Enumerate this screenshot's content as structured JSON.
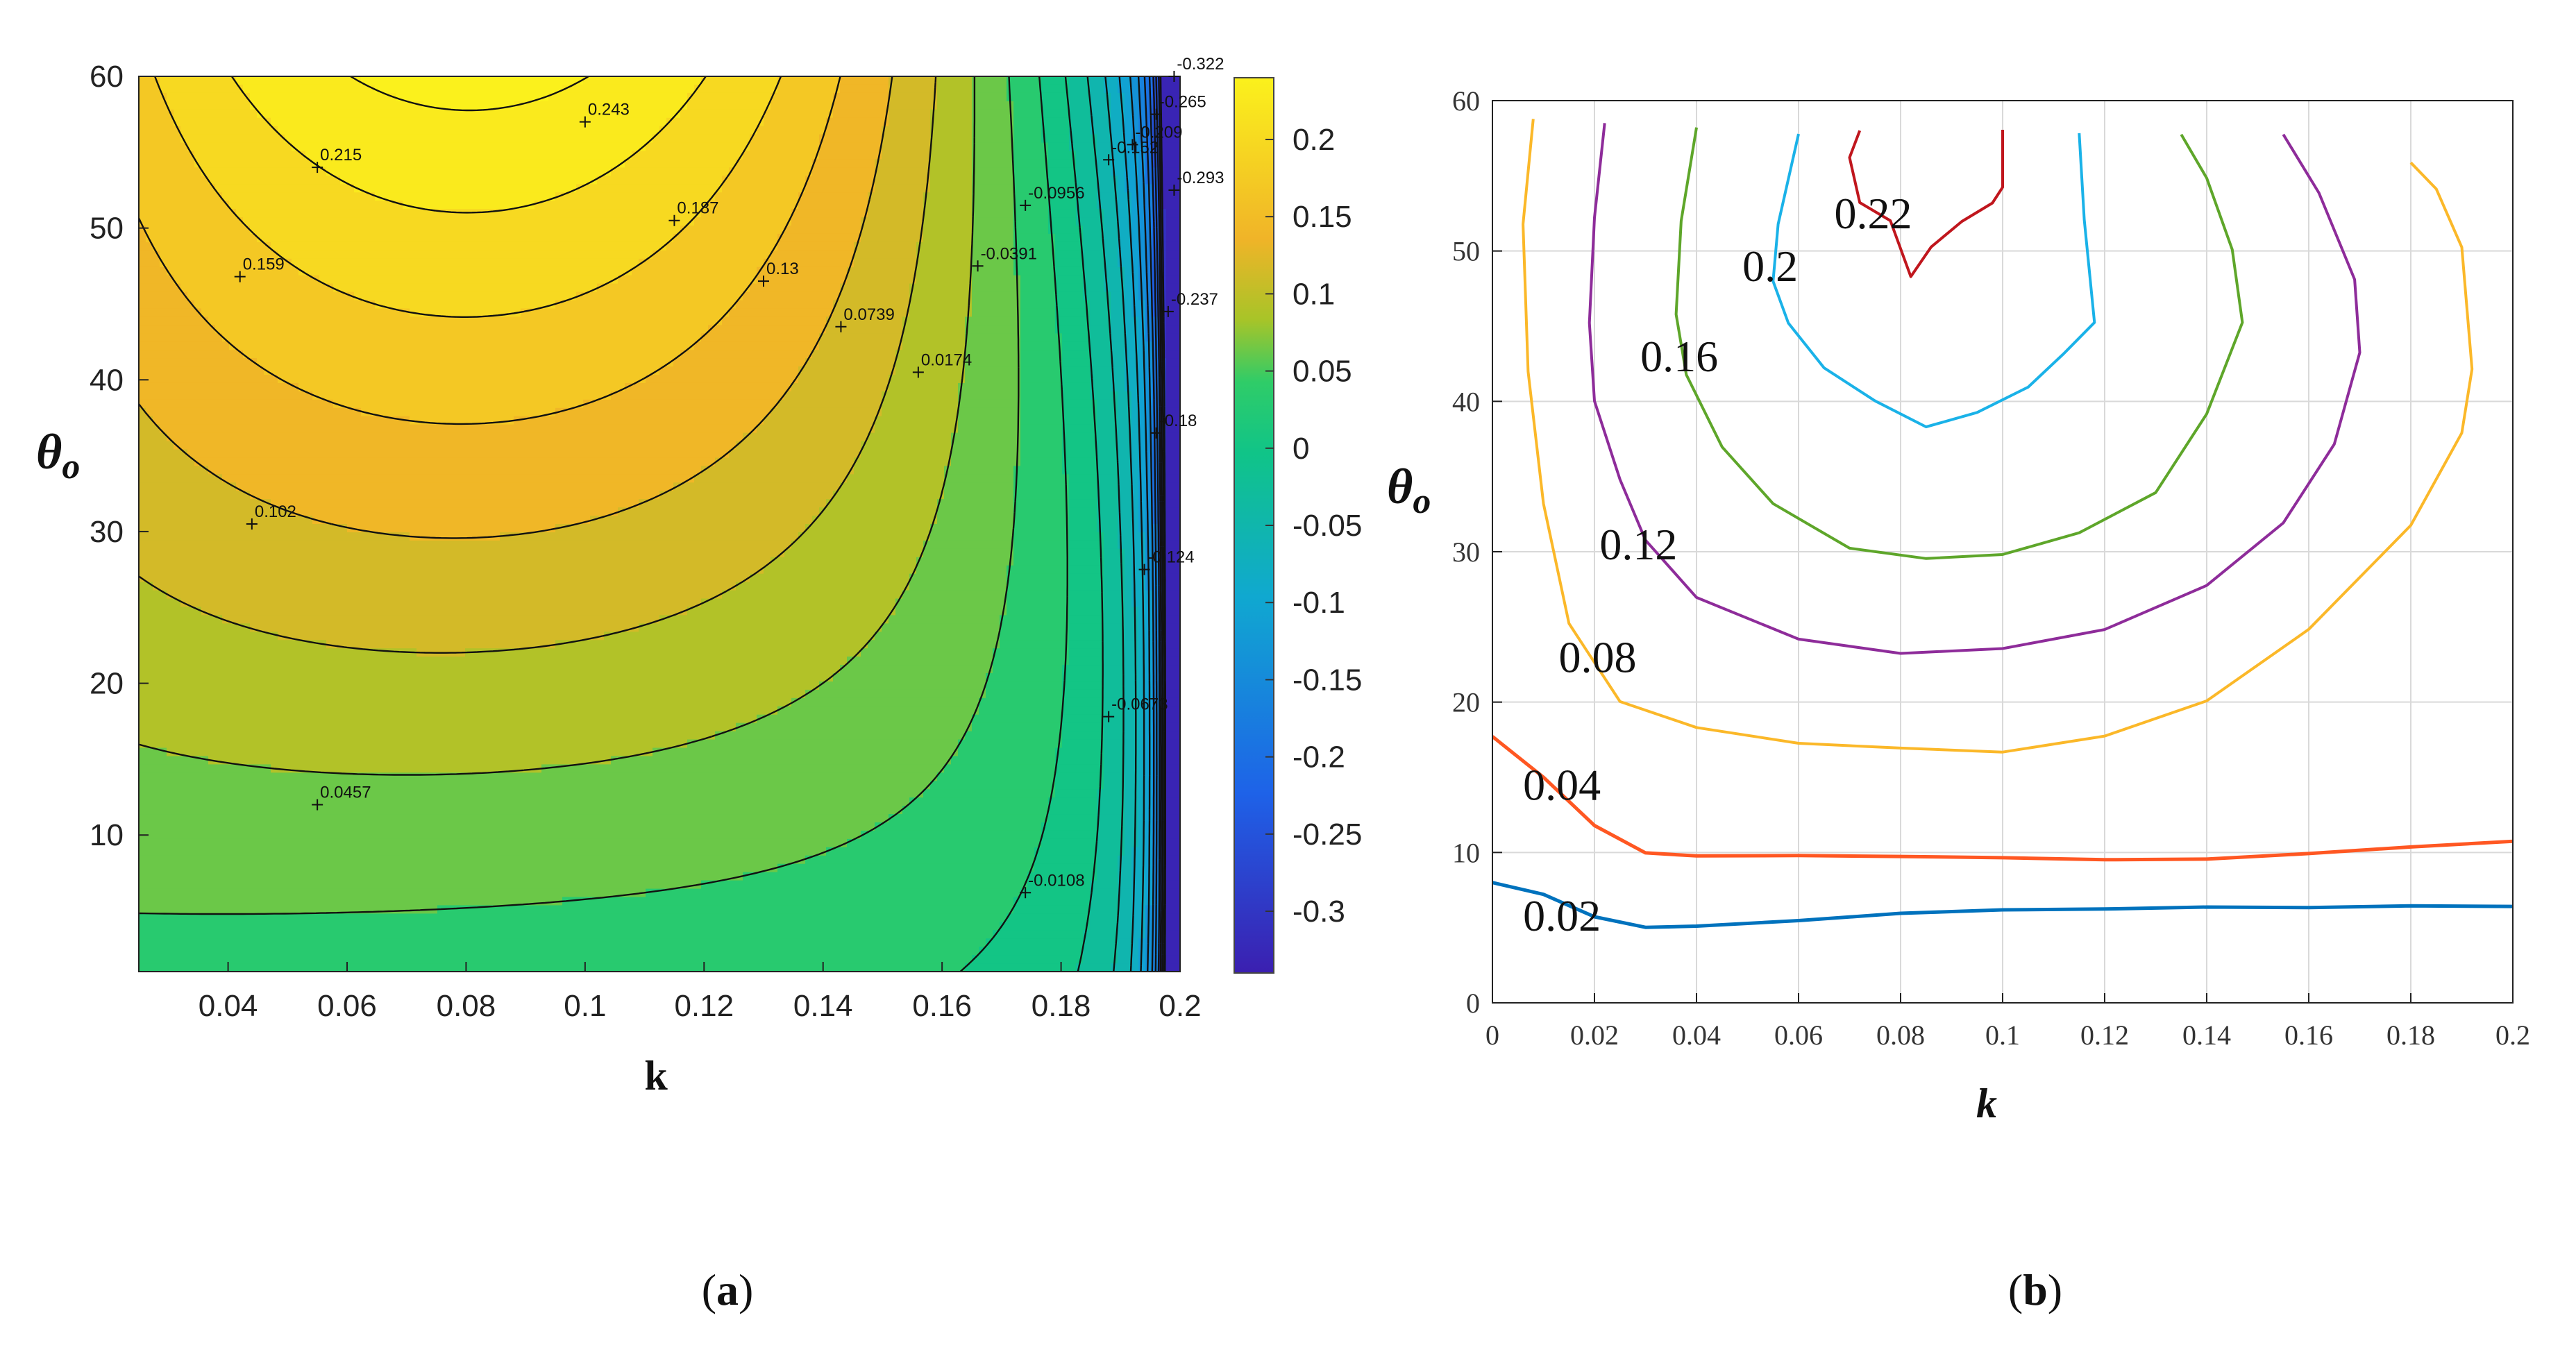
{
  "chart_data": [
    {
      "type": "contour",
      "panel": "(a)",
      "title": "",
      "xlabel": "k",
      "ylabel": "θo",
      "xlim": [
        0.025,
        0.2
      ],
      "ylim": [
        1,
        60
      ],
      "xticks": [
        "0.04",
        "0.06",
        "0.08",
        "0.1",
        "0.12",
        "0.14",
        "0.16",
        "0.18",
        "0.2"
      ],
      "yticks": [
        "10",
        "20",
        "30",
        "40",
        "50",
        "60"
      ],
      "colorbar": {
        "range": [
          -0.34,
          0.24
        ],
        "ticks": [
          "0.2",
          "0.15",
          "0.1",
          "0.05",
          "0",
          "-0.05",
          "-0.1",
          "-0.15",
          "-0.2",
          "-0.25",
          "-0.3"
        ]
      },
      "contour_labels": [
        {
          "text": "0.243",
          "k": 0.1,
          "theta": 57
        },
        {
          "text": "0.215",
          "k": 0.055,
          "theta": 54
        },
        {
          "text": "0.187",
          "k": 0.115,
          "theta": 50.5
        },
        {
          "text": "0.159",
          "k": 0.042,
          "theta": 46.8
        },
        {
          "text": "0.13",
          "k": 0.13,
          "theta": 46.5
        },
        {
          "text": "0.102",
          "k": 0.044,
          "theta": 30.5
        },
        {
          "text": "0.0739",
          "k": 0.143,
          "theta": 43.5
        },
        {
          "text": "0.0457",
          "k": 0.055,
          "theta": 12
        },
        {
          "text": "0.0174",
          "k": 0.156,
          "theta": 40.5
        },
        {
          "text": "-0.0108",
          "k": 0.174,
          "theta": 6.2
        },
        {
          "text": "-0.0391",
          "k": 0.166,
          "theta": 47.5
        },
        {
          "text": "-0.0673",
          "k": 0.188,
          "theta": 17.8
        },
        {
          "text": "-0.0956",
          "k": 0.174,
          "theta": 51.5
        },
        {
          "text": "-0.124",
          "k": 0.194,
          "theta": 27.5
        },
        {
          "text": "-0.152",
          "k": 0.188,
          "theta": 54.5
        },
        {
          "text": "-0.18",
          "k": 0.196,
          "theta": 36.5
        },
        {
          "text": "-0.209",
          "k": 0.192,
          "theta": 55.5
        },
        {
          "text": "-0.237",
          "k": 0.198,
          "theta": 44.5
        },
        {
          "text": "-0.265",
          "k": 0.196,
          "theta": 57.5
        },
        {
          "text": "-0.293",
          "k": 0.199,
          "theta": 52.5
        },
        {
          "text": "-0.322",
          "k": 0.199,
          "theta": 60
        }
      ]
    },
    {
      "type": "contour",
      "panel": "(b)",
      "title": "",
      "xlabel": "k",
      "ylabel": "θo",
      "xlim": [
        0,
        0.2
      ],
      "ylim": [
        0,
        60
      ],
      "xticks": [
        "0",
        "0.02",
        "0.04",
        "0.06",
        "0.08",
        "0.1",
        "0.12",
        "0.14",
        "0.16",
        "0.18",
        "0.2"
      ],
      "yticks": [
        "0",
        "10",
        "20",
        "30",
        "40",
        "50",
        "60"
      ],
      "grid": true,
      "series": [
        {
          "name": "0.02",
          "color": "#0072bd",
          "k": [
            0,
            0.01,
            0.02,
            0.03,
            0.04,
            0.06,
            0.08,
            0.1,
            0.12,
            0.14,
            0.16,
            0.18,
            0.2
          ],
          "theta": [
            8,
            7,
            5.5,
            5,
            5.3,
            5.7,
            6,
            6,
            6,
            6.3,
            6.5,
            6.7,
            6.5
          ]
        },
        {
          "name": "0.04",
          "color": "#ff5722",
          "k": [
            0,
            0.01,
            0.02,
            0.03,
            0.04,
            0.06,
            0.08,
            0.1,
            0.12,
            0.14,
            0.16,
            0.18,
            0.2
          ],
          "theta": [
            17.5,
            15,
            12,
            10.2,
            9.8,
            9.6,
            9.5,
            9.6,
            9.7,
            9.8,
            10,
            10.2,
            10.5
          ]
        },
        {
          "name": "0.08",
          "color": "#fbb829",
          "k": [
            0.008,
            0.006,
            0.007,
            0.01,
            0.015,
            0.025,
            0.04,
            0.06,
            0.08,
            0.1,
            0.12,
            0.14,
            0.16,
            0.18,
            0.19,
            0.192,
            0.19,
            0.185,
            0.18
          ],
          "theta": [
            59,
            52,
            42,
            33,
            25,
            20,
            18.5,
            17.5,
            17,
            16.5,
            17.5,
            20,
            25,
            32,
            38,
            42,
            50,
            54,
            56
          ]
        },
        {
          "name": "0.12",
          "color": "#8e2c9a",
          "k": [
            0.022,
            0.02,
            0.019,
            0.02,
            0.025,
            0.03,
            0.04,
            0.06,
            0.08,
            0.1,
            0.12,
            0.14,
            0.155,
            0.165,
            0.17,
            0.169,
            0.162,
            0.155
          ],
          "theta": [
            58.5,
            52,
            45,
            40,
            35,
            31,
            27,
            24,
            23,
            23.5,
            25,
            28,
            32,
            37,
            43,
            48,
            54,
            58
          ]
        },
        {
          "name": "0.16",
          "color": "#5ea62a",
          "k": [
            0.04,
            0.037,
            0.036,
            0.038,
            0.045,
            0.055,
            0.07,
            0.085,
            0.1,
            0.115,
            0.13,
            0.14,
            0.147,
            0.145,
            0.14,
            0.135
          ],
          "theta": [
            58,
            52,
            46,
            42,
            37,
            33,
            30,
            29.5,
            30,
            31.5,
            34,
            39,
            45,
            50,
            55,
            58
          ]
        },
        {
          "name": "0.2",
          "color": "#1ab2e8",
          "k": [
            0.06,
            0.056,
            0.055,
            0.058,
            0.065,
            0.075,
            0.085,
            0.095,
            0.105,
            0.112,
            0.118,
            0.116,
            0.115
          ],
          "theta": [
            58,
            52,
            48,
            45,
            42,
            40,
            38.5,
            39.5,
            41,
            43,
            45,
            52,
            58
          ]
        },
        {
          "name": "0.22",
          "color": "#c0161d",
          "k": [
            0.072,
            0.07,
            0.072,
            0.078,
            0.082,
            0.086,
            0.092,
            0.098,
            0.1,
            0.1
          ],
          "theta": [
            58,
            56,
            53,
            52,
            48.5,
            50.5,
            52,
            53,
            54,
            58
          ]
        }
      ],
      "level_labels": [
        {
          "text": "0.22",
          "k": 0.067,
          "theta": 51.5
        },
        {
          "text": "0.2",
          "k": 0.049,
          "theta": 48
        },
        {
          "text": "0.16",
          "k": 0.029,
          "theta": 42
        },
        {
          "text": "0.12",
          "k": 0.021,
          "theta": 29.5
        },
        {
          "text": "0.08",
          "k": 0.013,
          "theta": 22
        },
        {
          "text": "0.04",
          "k": 0.006,
          "theta": 13.5
        },
        {
          "text": "0.02",
          "k": 0.006,
          "theta": 4.8
        }
      ]
    }
  ],
  "captions": {
    "a": [
      "(",
      "a",
      ")"
    ],
    "b": [
      "(",
      "b",
      ")"
    ]
  },
  "axis_text": {
    "theta_sym": "θ",
    "theta_sub": "o",
    "k": "k"
  }
}
